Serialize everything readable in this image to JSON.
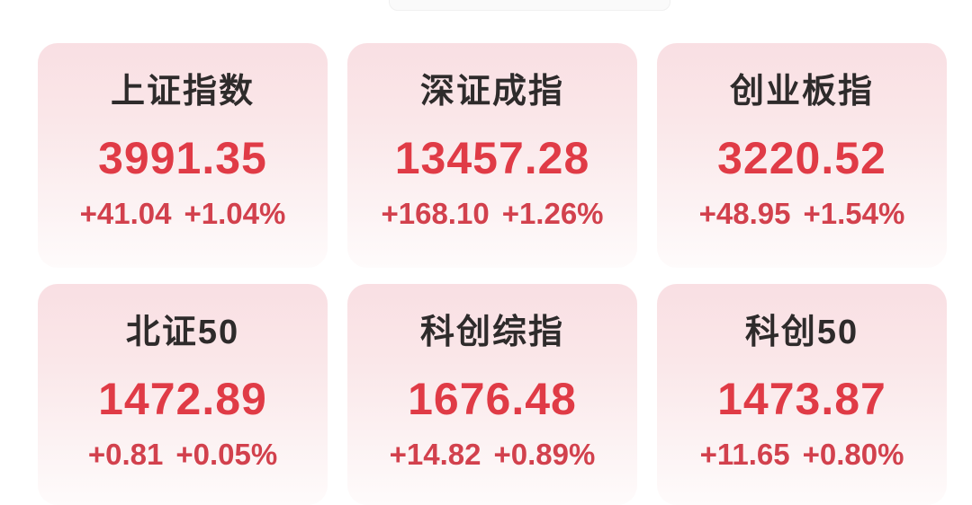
{
  "colors": {
    "background": "#ffffff",
    "card_gradient_top": "#f9dfe3",
    "card_gradient_bottom": "#fefbfb",
    "index_name_color": "#2e2b2b",
    "value_red": "#e03b46",
    "change_red": "#d2414d"
  },
  "cards": [
    {
      "name": "上证指数",
      "value": "3991.35",
      "change": "+41.04",
      "change_pct": "+1.04%"
    },
    {
      "name": "深证成指",
      "value": "13457.28",
      "change": "+168.10",
      "change_pct": "+1.26%"
    },
    {
      "name": "创业板指",
      "value": "3220.52",
      "change": "+48.95",
      "change_pct": "+1.54%"
    },
    {
      "name": "北证50",
      "value": "1472.89",
      "change": "+0.81",
      "change_pct": "+0.05%"
    },
    {
      "name": "科创综指",
      "value": "1676.48",
      "change": "+14.82",
      "change_pct": "+0.89%"
    },
    {
      "name": "科创50",
      "value": "1473.87",
      "change": "+11.65",
      "change_pct": "+0.80%"
    }
  ]
}
